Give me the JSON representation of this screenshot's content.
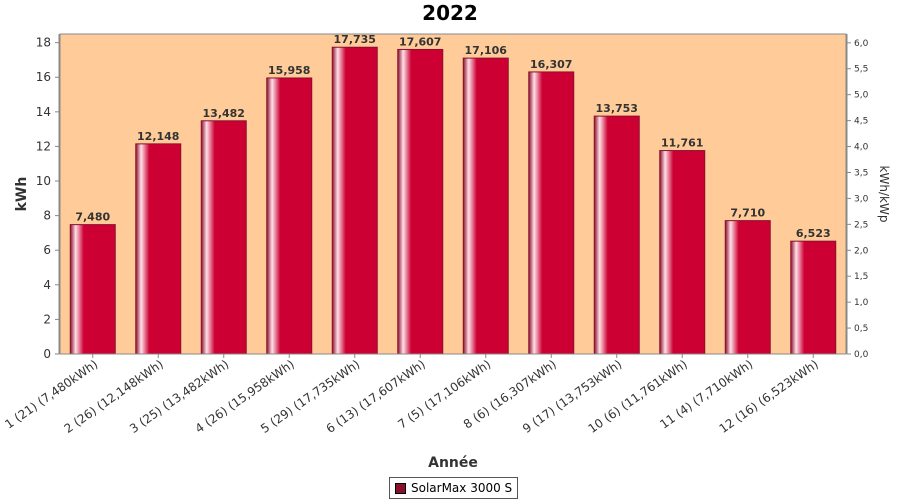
{
  "chart_data": {
    "type": "bar",
    "title": "2022",
    "xlabel": "Année",
    "ylabel": "kWh",
    "y2label": "kWh/kWp",
    "ylim": [
      0,
      18.5
    ],
    "yticks": [
      "0",
      "2",
      "4",
      "6",
      "8",
      "10",
      "12",
      "14",
      "16",
      "18"
    ],
    "y2lim": [
      0,
      6.17
    ],
    "y2ticks": [
      "0,0",
      "0,5",
      "1,0",
      "1,5",
      "2,0",
      "2,5",
      "3,0",
      "3,5",
      "4,0",
      "4,5",
      "5,0",
      "5,5",
      "6,0"
    ],
    "categories": [
      "1 (21)  (7,480kWh)",
      "2 (26)  (12,148kWh)",
      "3 (25)  (13,482kWh)",
      "4 (26)  (15,958kWh)",
      "5 (29)  (17,735kWh)",
      "6 (13)  (17,607kWh)",
      "7 (5)  (17,106kWh)",
      "8 (6)  (16,307kWh)",
      "9 (17)  (13,753kWh)",
      "10 (6)  (11,761kWh)",
      "11 (4)  (7,710kWh)",
      "12 (16)  (6,523kWh)"
    ],
    "series": [
      {
        "name": "SolarMax 3000 S",
        "values": [
          7.48,
          12.148,
          13.482,
          15.958,
          17.735,
          17.607,
          17.106,
          16.307,
          13.753,
          11.761,
          7.71,
          6.523
        ],
        "labels": [
          "7,480",
          "12,148",
          "13,482",
          "15,958",
          "17,735",
          "17,607",
          "17,106",
          "16,307",
          "13,753",
          "11,761",
          "7,710",
          "6,523"
        ]
      }
    ],
    "colors": {
      "plot_background": "#ffcc99",
      "bar_dark": "#8b0f2c",
      "bar_main": "#cc0033",
      "bar_highlight": "#ffe0e8"
    },
    "grid": false,
    "legend_position": "bottom"
  }
}
